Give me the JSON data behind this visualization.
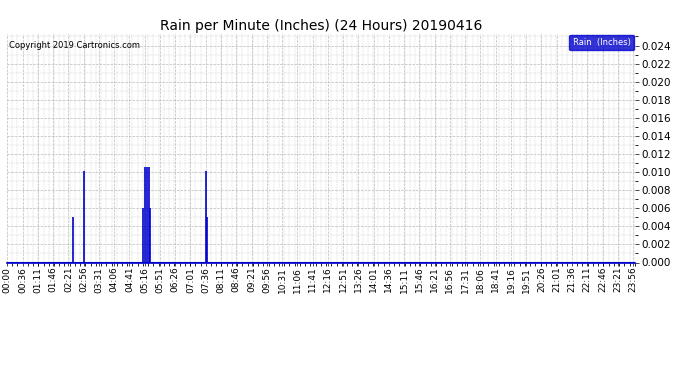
{
  "title": "Rain per Minute (Inches) (24 Hours) 20190416",
  "copyright_text": "Copyright 2019 Cartronics.com",
  "legend_label": "Rain  (Inches)",
  "legend_bg": "#0000cc",
  "legend_fg": "#ffffff",
  "ylim": [
    0.0,
    0.0253
  ],
  "yticks": [
    0.0,
    0.002,
    0.004,
    0.006,
    0.008,
    0.01,
    0.012,
    0.014,
    0.016,
    0.018,
    0.02,
    0.022,
    0.024
  ],
  "fig_bg": "#ffffff",
  "plot_bg": "#ffffff",
  "line_color": "#0000cc",
  "grid_color": "#bbbbbb",
  "title_fontsize": 10,
  "copyright_fontsize": 6,
  "tick_fontsize": 6.5,
  "ytick_fontsize": 7.5,
  "total_minutes": 1440,
  "spikes": [
    {
      "minute": 151,
      "value": 0.005
    },
    {
      "minute": 176,
      "value": 0.0101
    },
    {
      "minute": 311,
      "value": 0.006
    },
    {
      "minute": 316,
      "value": 0.0106
    },
    {
      "minute": 321,
      "value": 0.0106
    },
    {
      "minute": 325,
      "value": 0.0106
    },
    {
      "minute": 328,
      "value": 0.006
    },
    {
      "minute": 456,
      "value": 0.0101
    },
    {
      "minute": 460,
      "value": 0.005
    }
  ],
  "xtick_positions": [
    0,
    36,
    71,
    106,
    141,
    176,
    211,
    246,
    281,
    316,
    351,
    386,
    421,
    456,
    491,
    526,
    561,
    596,
    631,
    666,
    701,
    736,
    771,
    806,
    841,
    876,
    911,
    946,
    981,
    1016,
    1051,
    1086,
    1121,
    1156,
    1191,
    1226,
    1261,
    1296,
    1331,
    1366,
    1401,
    1436
  ],
  "xtick_labels": [
    "00:00",
    "00:36",
    "01:11",
    "01:46",
    "02:21",
    "02:56",
    "03:31",
    "04:06",
    "04:41",
    "05:16",
    "05:51",
    "06:26",
    "07:01",
    "07:36",
    "08:11",
    "08:46",
    "09:21",
    "09:56",
    "10:31",
    "11:06",
    "11:41",
    "12:16",
    "12:51",
    "13:26",
    "14:01",
    "14:36",
    "15:11",
    "15:46",
    "16:21",
    "16:56",
    "17:31",
    "18:06",
    "18:41",
    "19:16",
    "19:51",
    "20:26",
    "21:01",
    "21:36",
    "22:11",
    "22:46",
    "23:21",
    "23:56"
  ]
}
